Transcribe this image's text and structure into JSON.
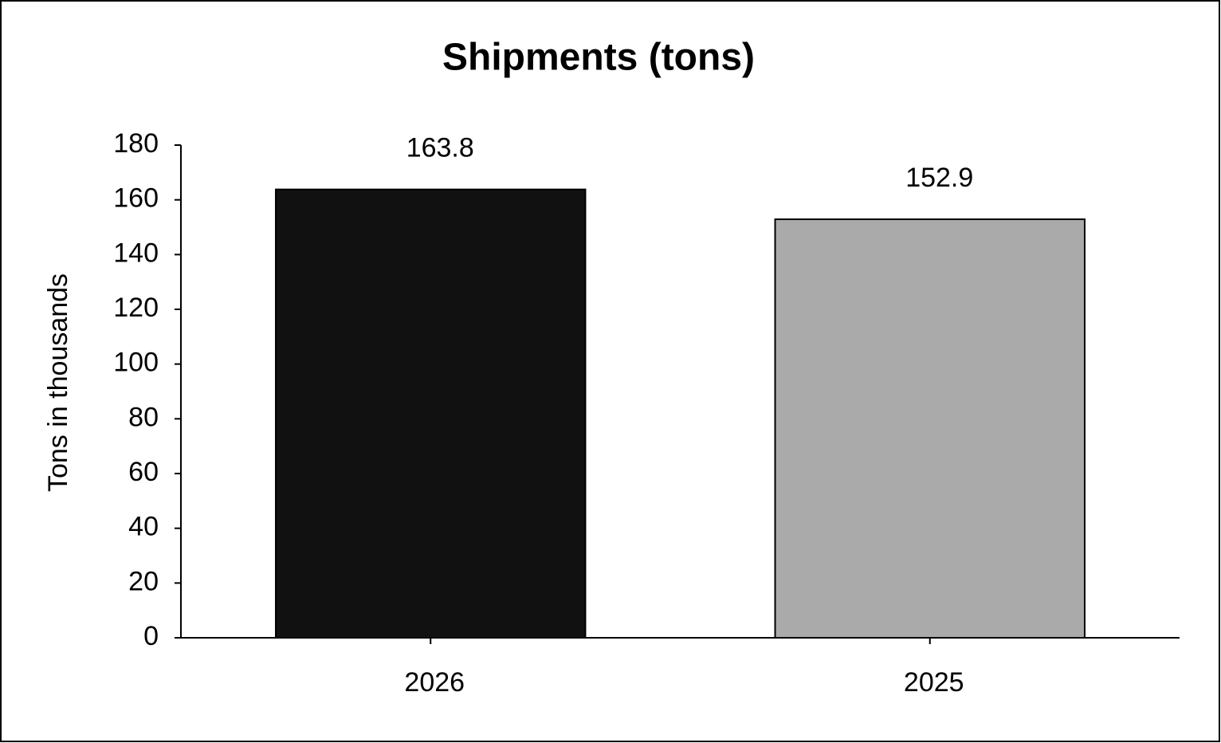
{
  "chart_data": {
    "type": "bar",
    "title": "Shipments (tons)",
    "ylabel": "Tons in thousands",
    "categories": [
      "2026",
      "2025"
    ],
    "values": [
      163.8,
      152.9
    ],
    "colors": [
      "#111111",
      "#aaaaaa"
    ],
    "ylim": [
      0,
      180
    ],
    "yticks": [
      0,
      20,
      40,
      60,
      80,
      100,
      120,
      140,
      160,
      180
    ],
    "grid": false
  }
}
